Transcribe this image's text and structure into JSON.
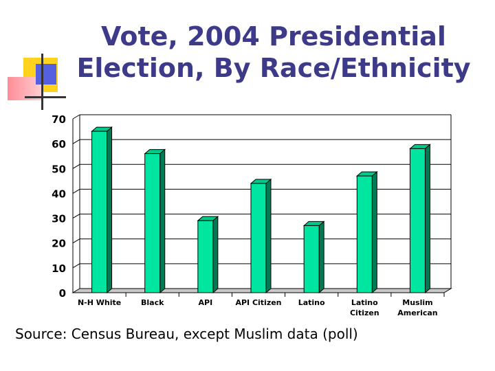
{
  "slide": {
    "title_line1": "Vote, 2004 Presidential",
    "title_line2": "Election, By Race/Ethnicity",
    "source": "Source: Census Bureau, except Muslim data (poll)"
  },
  "colors": {
    "title": "#3e3a8a",
    "bar_front": "#00e5a0",
    "bar_side": "#007a55",
    "bar_top": "#00c98a",
    "grid": "#000000"
  },
  "chart_data": {
    "type": "bar",
    "title": "",
    "xlabel": "",
    "ylabel": "",
    "categories": [
      [
        "N-H White"
      ],
      [
        "Black"
      ],
      [
        "API"
      ],
      [
        "API Citizen"
      ],
      [
        "Latino"
      ],
      [
        "Latino",
        "Citizen"
      ],
      [
        "Muslim",
        "American"
      ]
    ],
    "values": [
      65,
      56,
      29,
      44,
      27,
      47,
      58
    ],
    "ylim": [
      0,
      70
    ],
    "yticks": [
      0,
      10,
      20,
      30,
      40,
      50,
      60,
      70
    ],
    "grid": true,
    "legend": "none"
  }
}
